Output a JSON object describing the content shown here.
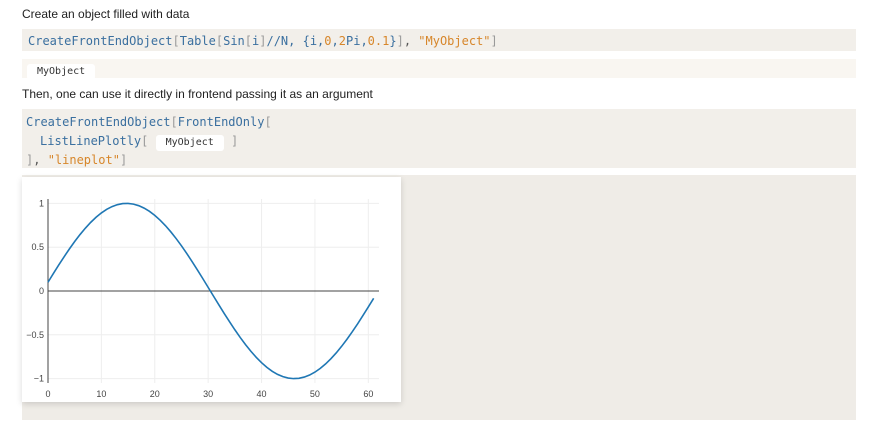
{
  "intro_text": "Create an object filled with data",
  "cell1": {
    "fn1": "CreateFrontEndObject",
    "b1": "[",
    "fn2": "Table",
    "b2": "[",
    "fn3": "Sin",
    "b3": "[",
    "var_i": "i",
    "b4": "]",
    "op1": "//N, {i,",
    "n0": "0",
    "op2": ",",
    "n2": "2",
    "pi": "Pi",
    "op3": ",",
    "n01": "0.1",
    "op4": "}",
    "b5": "]",
    "op5": ", ",
    "str": "\"MyObject\"",
    "b6": "]"
  },
  "out1": {
    "chip": "MyObject"
  },
  "then_text": "Then, one can use it directly in frontend passing it as an argument",
  "cell2": {
    "fn1": "CreateFrontEndObject",
    "b1": "[",
    "fn2": "FrontEndOnly",
    "b2": "[",
    "fn3": "ListLinePlotly",
    "b3": "[",
    "chip": "MyObject",
    "b4": "]",
    "b5": "]",
    "op1": ", ",
    "str": "\"lineplot\"",
    "b6": "]"
  },
  "colors": {
    "line": "#1f77b4",
    "cell_bg": "#f2efea",
    "string": "#d7862a",
    "function": "#3a6f9f"
  },
  "chart_data": {
    "type": "line",
    "x_ticks": [
      0,
      10,
      20,
      30,
      40,
      50,
      60
    ],
    "y_ticks": [
      1,
      0.5,
      0,
      -0.5,
      -1
    ],
    "y_tick_labels": [
      "1",
      "0.5",
      "0",
      "−0.5",
      "−1"
    ],
    "xlim": [
      0,
      62
    ],
    "ylim": [
      -1.05,
      1.05
    ],
    "series": [
      {
        "formula": "sin(0.1*k)",
        "k_range": [
          1,
          62
        ]
      }
    ],
    "grid": true
  }
}
